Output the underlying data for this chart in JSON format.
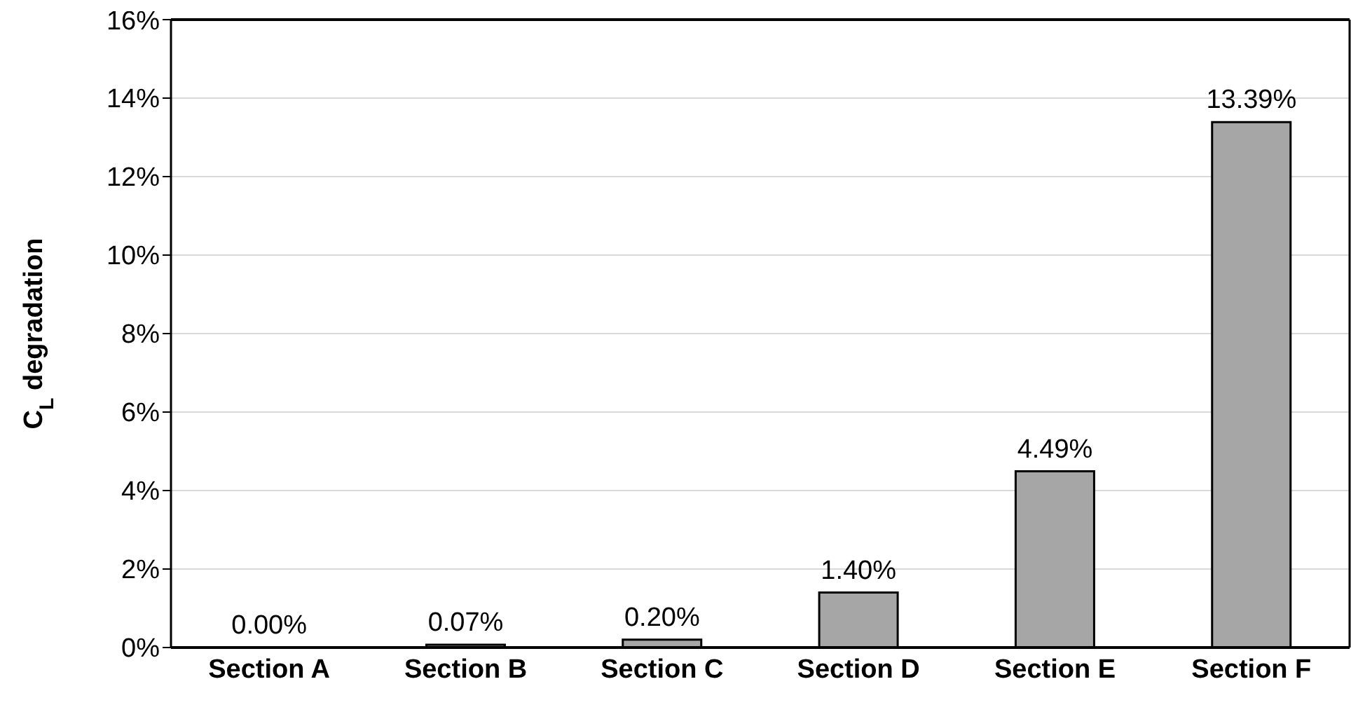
{
  "chart_data": {
    "type": "bar",
    "ylabel": "C$_{L}$ degradation",
    "categories": [
      "Section A",
      "Section B",
      "Section C",
      "Section D",
      "Section E",
      "Section F"
    ],
    "values": [
      0.0,
      0.07,
      0.2,
      1.4,
      4.49,
      13.39
    ],
    "value_labels": [
      "0.00%",
      "0.07%",
      "0.20%",
      "1.40%",
      "4.49%",
      "13.39%"
    ],
    "color": "#a6a6a6",
    "ylim": [
      0,
      16
    ],
    "yticks": [
      {
        "value": 0,
        "label": "0%"
      },
      {
        "value": 2,
        "label": "2%"
      },
      {
        "value": 4,
        "label": "4%"
      },
      {
        "value": 6,
        "label": "6%"
      },
      {
        "value": 8,
        "label": "8%"
      },
      {
        "value": 10,
        "label": "10%"
      },
      {
        "value": 12,
        "label": "12%"
      },
      {
        "value": 14,
        "label": "14%"
      },
      {
        "value": 16,
        "label": "16%"
      }
    ],
    "grid": "y",
    "legend": false
  }
}
